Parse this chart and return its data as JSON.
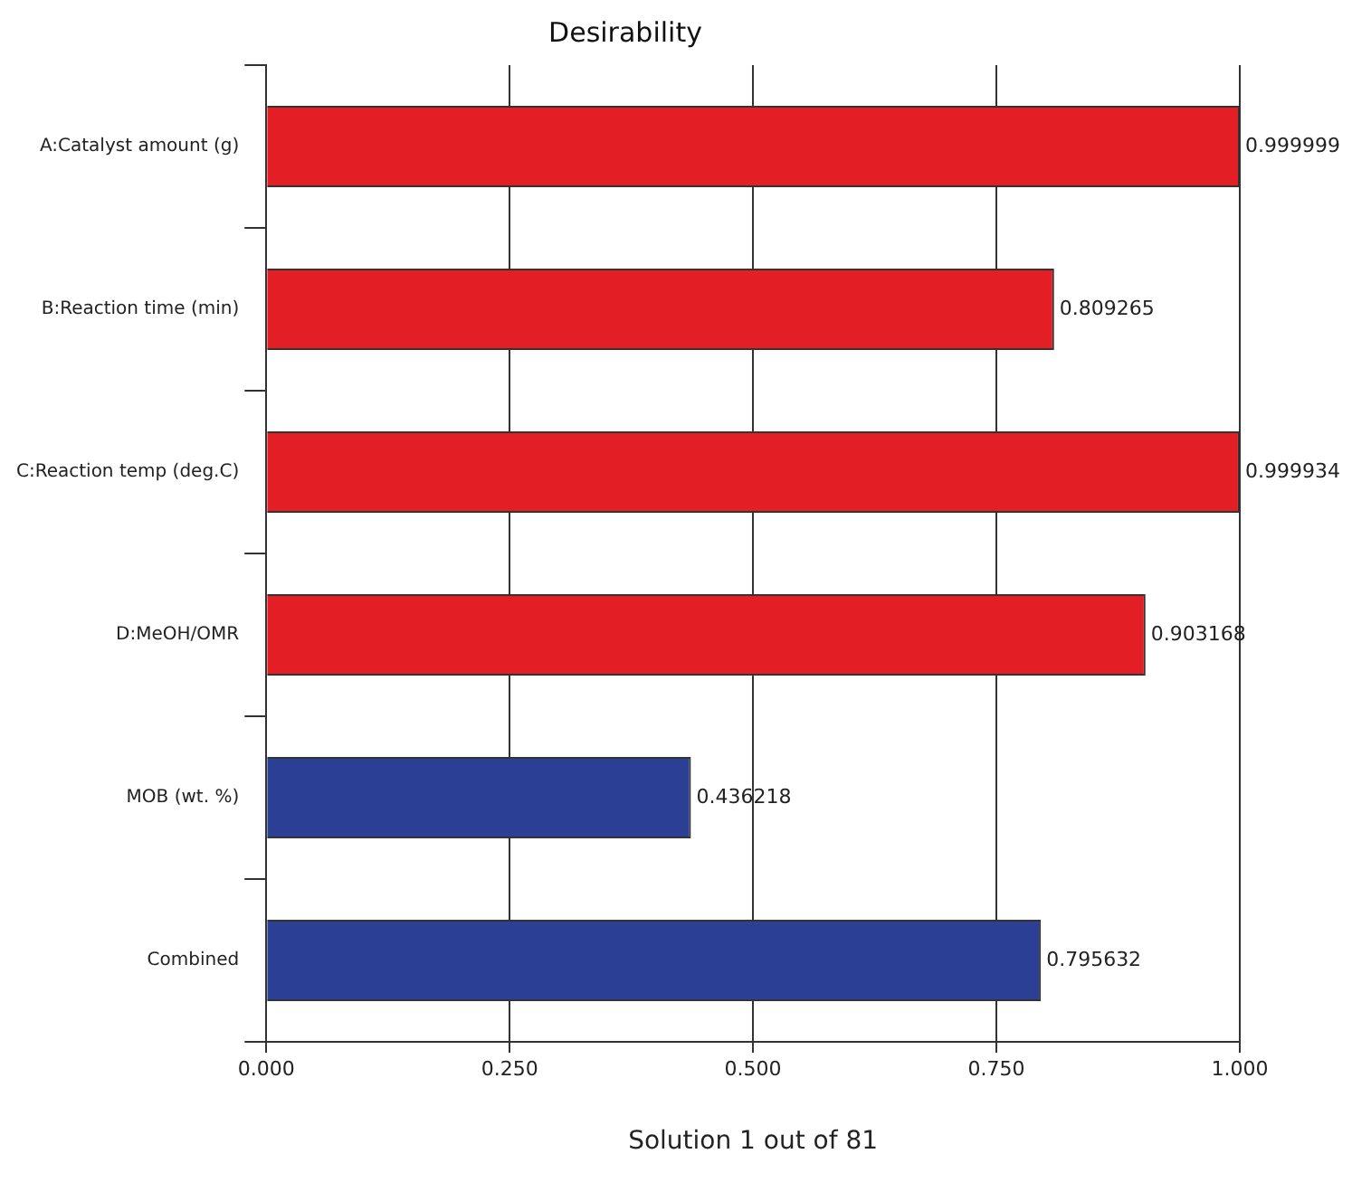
{
  "chart_data": {
    "type": "bar",
    "orientation": "horizontal",
    "title": "Desirability",
    "xlabel": "Solution 1 out of 81",
    "categories": [
      "A:Catalyst amount (g)",
      "B:Reaction time (min)",
      "C:Reaction temp (deg.C)",
      "D:MeOH/OMR",
      "MOB (wt. %)",
      "Combined"
    ],
    "values": [
      0.999999,
      0.809265,
      0.999934,
      0.903168,
      0.436218,
      0.795632
    ],
    "colors": [
      "#e31e24",
      "#e31e24",
      "#e31e24",
      "#e31e24",
      "#2b3f94",
      "#2b3f94"
    ],
    "xlim": [
      0,
      1
    ],
    "xticks": [
      {
        "value": 0,
        "label": "0.000"
      },
      {
        "value": 0.25,
        "label": "0.250"
      },
      {
        "value": 0.5,
        "label": "0.500"
      },
      {
        "value": 0.75,
        "label": "0.750"
      },
      {
        "value": 1,
        "label": "1.000"
      }
    ],
    "grid": "x",
    "data_labels": true
  }
}
